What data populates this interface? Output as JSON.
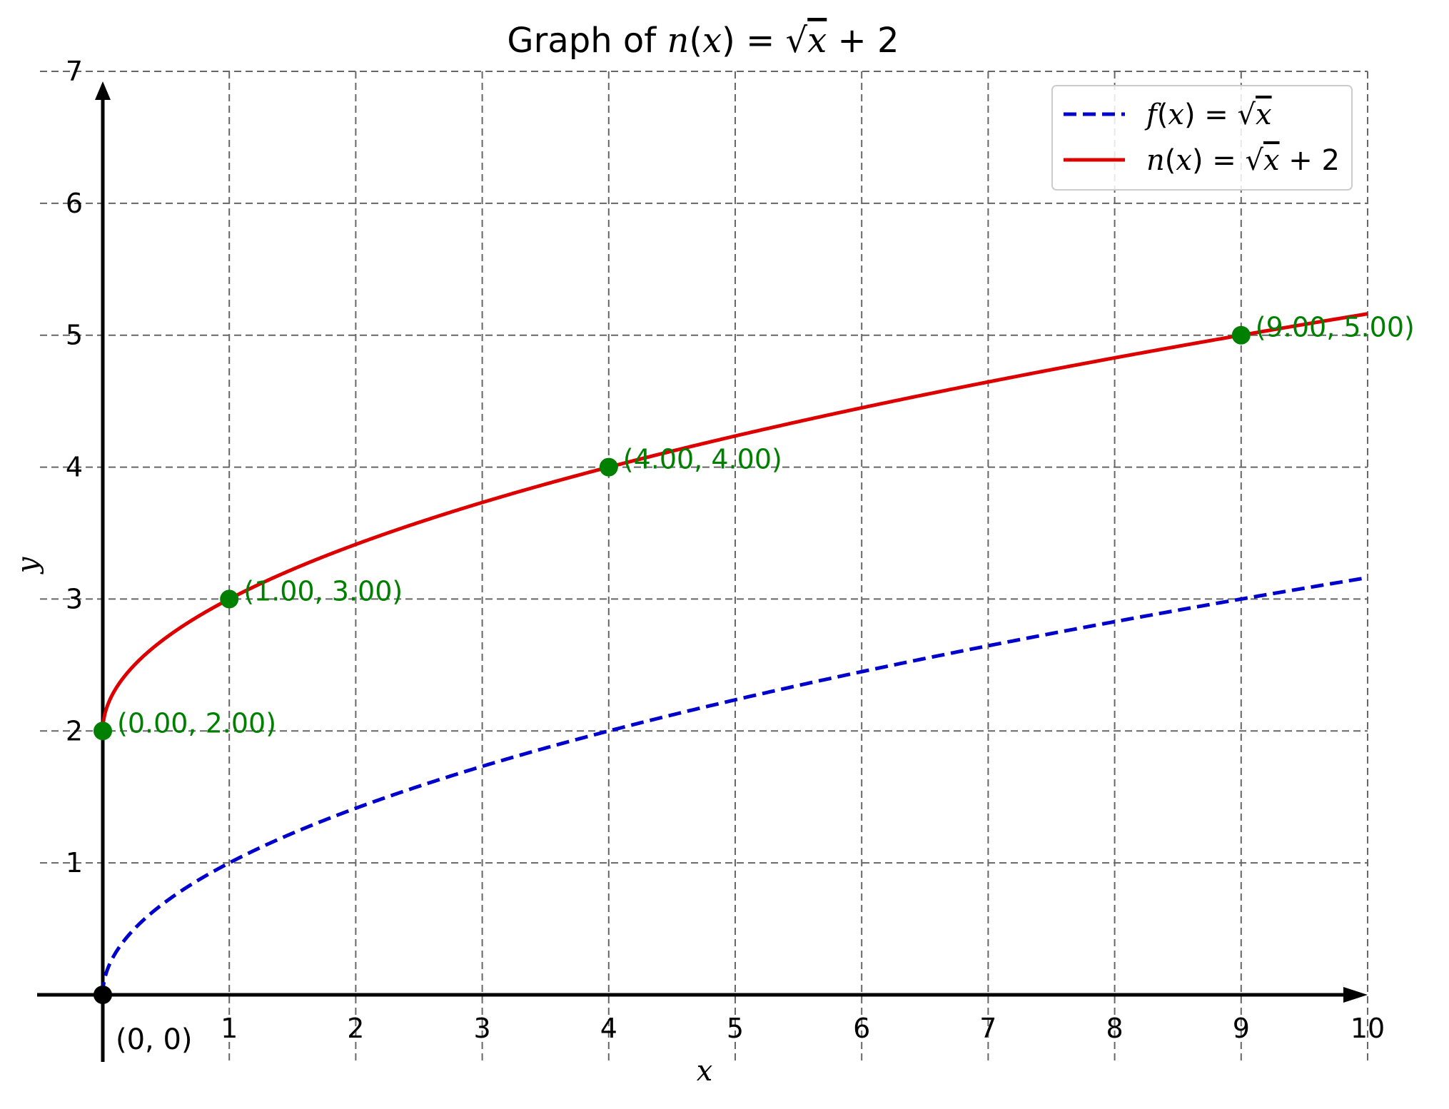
{
  "chart_data": {
    "type": "line",
    "title": {
      "prefix": "Graph of ",
      "func": "n",
      "var": "x",
      "suffix": " + 2"
    },
    "xlabel": "x",
    "ylabel": "y",
    "xlim": [
      0,
      10
    ],
    "ylim": [
      0,
      7
    ],
    "x_ticks": [
      1,
      2,
      3,
      4,
      5,
      6,
      7,
      8,
      9,
      10
    ],
    "y_ticks": [
      1,
      2,
      3,
      4,
      5,
      6,
      7
    ],
    "grid": true,
    "legend_position": "top-right",
    "series": [
      {
        "name": "f(x) = √x",
        "legend": {
          "func": "f",
          "var": "x",
          "suffix": ""
        },
        "formula": "sqrt(x)",
        "color": "#0000cc",
        "style": "dashed"
      },
      {
        "name": "n(x) = √x + 2",
        "legend": {
          "func": "n",
          "var": "x",
          "suffix": " + 2"
        },
        "formula": "sqrt(x)+2",
        "color": "#dd0000",
        "style": "solid"
      }
    ],
    "points": [
      {
        "x": 0,
        "y": 2,
        "label": "(0.00, 2.00)"
      },
      {
        "x": 1,
        "y": 3,
        "label": "(1.00, 3.00)"
      },
      {
        "x": 4,
        "y": 4,
        "label": "(4.00, 4.00)"
      },
      {
        "x": 9,
        "y": 5,
        "label": "(9.00, 5.00)"
      }
    ],
    "point_color": "#008000",
    "origin": {
      "x": 0,
      "y": 0,
      "label": "(0, 0)"
    }
  }
}
